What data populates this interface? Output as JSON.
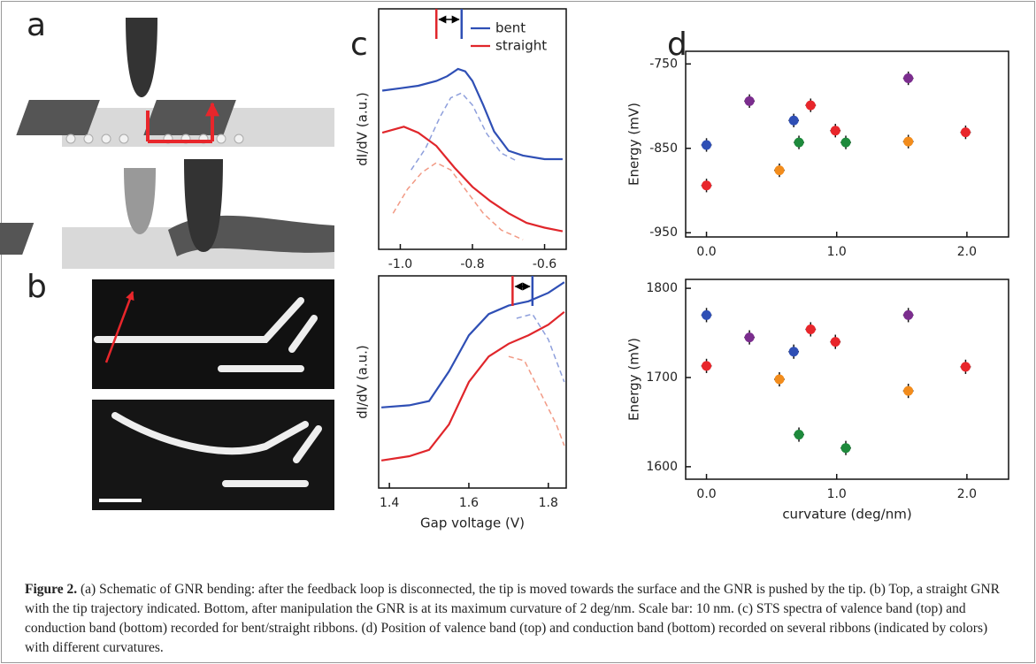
{
  "panel_labels": [
    "a",
    "b",
    "c",
    "d"
  ],
  "caption": {
    "label": "Figure 2.",
    "text": "(a) Schematic of GNR bending: after the feedback loop is disconnected, the tip is moved towards the surface and the GNR is pushed by the tip. (b) Top, a straight GNR with the tip trajectory indicated. Bottom, after manipulation the GNR is at its maximum curvature of 2 deg/nm. Scale bar: 10 nm. (c) STS spectra of valence band (top) and conduction band (bottom) recorded for bent/straight ribbons. (d) Position of valence band (top) and conduction band (bottom) recorded on several ribbons (indicated by colors) with different curvatures."
  },
  "chart_data": [
    {
      "type": "line",
      "ylabel": "dI/dV (a.u.)",
      "xlim": [
        -1.06,
        -0.54
      ],
      "ylim": [
        0,
        1
      ],
      "xticks": [
        {
          "value": -1,
          "label": "-1.0"
        },
        -0.8,
        -0.6
      ],
      "legend": "upper right",
      "series": [
        {
          "name": "bent",
          "color": "#2f4fb5",
          "x": [
            -1.05,
            -1.0,
            -0.95,
            -0.9,
            -0.87,
            -0.84,
            -0.82,
            -0.8,
            -0.77,
            -0.74,
            -0.7,
            -0.66,
            -0.6,
            -0.55
          ],
          "values": [
            0.66,
            0.67,
            0.68,
            0.7,
            0.72,
            0.75,
            0.74,
            0.7,
            0.6,
            0.49,
            0.41,
            0.39,
            0.375,
            0.375
          ]
        },
        {
          "name": "straight",
          "color": "#e0262b",
          "x": [
            -1.05,
            -0.99,
            -0.95,
            -0.9,
            -0.85,
            -0.8,
            -0.75,
            -0.7,
            -0.65,
            -0.6,
            -0.55
          ],
          "values": [
            0.485,
            0.51,
            0.485,
            0.43,
            0.34,
            0.26,
            0.2,
            0.15,
            0.11,
            0.09,
            0.075
          ]
        },
        {
          "color": "#8e9fdc",
          "dashed": true,
          "x": [
            -0.97,
            -0.93,
            -0.89,
            -0.86,
            -0.83,
            -0.8,
            -0.76,
            -0.72,
            -0.68
          ],
          "values": [
            0.33,
            0.42,
            0.55,
            0.63,
            0.65,
            0.6,
            0.48,
            0.4,
            0.37
          ]
        },
        {
          "color": "#f29a85",
          "dashed": true,
          "x": [
            -1.02,
            -0.98,
            -0.94,
            -0.9,
            -0.86,
            -0.82,
            -0.77,
            -0.72,
            -0.66
          ],
          "values": [
            0.15,
            0.25,
            0.32,
            0.36,
            0.33,
            0.25,
            0.15,
            0.08,
            0.04
          ]
        }
      ],
      "markers": [
        {
          "x": -0.9,
          "color": "#e0262b"
        },
        {
          "x": -0.83,
          "color": "#2f4fb5"
        }
      ]
    },
    {
      "type": "line",
      "ylabel": "dI/dV (a.u.)",
      "xlabel": "Gap voltage (V)",
      "xlim": [
        1.373,
        1.845
      ],
      "ylim": [
        0,
        1
      ],
      "xticks": [
        1.4,
        1.6,
        1.8
      ],
      "series": [
        {
          "color": "#2f4fb5",
          "x": [
            1.38,
            1.45,
            1.5,
            1.55,
            1.6,
            1.65,
            1.7,
            1.75,
            1.8,
            1.84
          ],
          "values": [
            0.38,
            0.39,
            0.41,
            0.55,
            0.72,
            0.82,
            0.86,
            0.88,
            0.92,
            0.97
          ]
        },
        {
          "color": "#e0262b",
          "x": [
            1.38,
            1.45,
            1.5,
            1.55,
            1.6,
            1.65,
            1.7,
            1.75,
            1.8,
            1.84
          ],
          "values": [
            0.13,
            0.15,
            0.18,
            0.3,
            0.5,
            0.62,
            0.68,
            0.72,
            0.77,
            0.83
          ]
        },
        {
          "color": "#8e9fdc",
          "dashed": true,
          "x": [
            1.72,
            1.76,
            1.8,
            1.84
          ],
          "values": [
            0.8,
            0.82,
            0.7,
            0.5
          ]
        },
        {
          "color": "#f29a85",
          "dashed": true,
          "x": [
            1.7,
            1.74,
            1.78,
            1.82,
            1.84
          ],
          "values": [
            0.62,
            0.6,
            0.45,
            0.3,
            0.2
          ]
        }
      ],
      "markers": [
        {
          "x": 1.71,
          "color": "#e0262b"
        },
        {
          "x": 1.76,
          "color": "#2f4fb5"
        }
      ]
    },
    {
      "type": "scatter",
      "ylabel": "Energy (mV)",
      "xlim": [
        -0.16,
        2.32
      ],
      "ylim": [
        -955,
        -735
      ],
      "xticks": [
        {
          "value": 0,
          "label": "0.0"
        },
        {
          "value": 1,
          "label": "1.0"
        },
        {
          "value": 2,
          "label": "2.0"
        }
      ],
      "yticks": [
        -750,
        -850,
        -950
      ],
      "yerr": 8,
      "xerr": 0.04,
      "series": [
        {
          "color": "#2f4fb5",
          "x": [
            0,
            0.67
          ],
          "values": [
            -846,
            -817
          ]
        },
        {
          "color": "#e8262b",
          "x": [
            0,
            0.8,
            0.99,
            1.99
          ],
          "values": [
            -894,
            -799,
            -829,
            -831
          ]
        },
        {
          "color": "#7b2d8e",
          "x": [
            0.33,
            1.55
          ],
          "values": [
            -794,
            -767
          ]
        },
        {
          "color": "#f28c1c",
          "x": [
            0.56,
            1.55
          ],
          "values": [
            -876,
            -842
          ]
        },
        {
          "color": "#1e8a3c",
          "x": [
            0.71,
            1.07
          ],
          "values": [
            -843,
            -843
          ]
        }
      ]
    },
    {
      "type": "scatter",
      "ylabel": "Energy (mV)",
      "xlabel": "curvature (deg/nm)",
      "xlim": [
        -0.16,
        2.32
      ],
      "ylim": [
        1586,
        1810
      ],
      "xticks": [
        {
          "value": 0,
          "label": "0.0"
        },
        {
          "value": 1,
          "label": "1.0"
        },
        {
          "value": 2,
          "label": "2.0"
        }
      ],
      "yticks": [
        1800,
        1700,
        1600
      ],
      "yerr": 8,
      "xerr": 0.04,
      "series": [
        {
          "color": "#2f4fb5",
          "x": [
            0,
            0.67
          ],
          "values": [
            1770,
            1729
          ]
        },
        {
          "color": "#e8262b",
          "x": [
            0,
            0.8,
            0.99,
            1.99
          ],
          "values": [
            1713,
            1754,
            1740,
            1712
          ]
        },
        {
          "color": "#7b2d8e",
          "x": [
            0.33,
            1.55
          ],
          "values": [
            1745,
            1770
          ]
        },
        {
          "color": "#f28c1c",
          "x": [
            0.56,
            1.55
          ],
          "values": [
            1698,
            1685
          ]
        },
        {
          "color": "#1e8a3c",
          "x": [
            0.71,
            1.07
          ],
          "values": [
            1636,
            1621
          ]
        }
      ]
    }
  ]
}
